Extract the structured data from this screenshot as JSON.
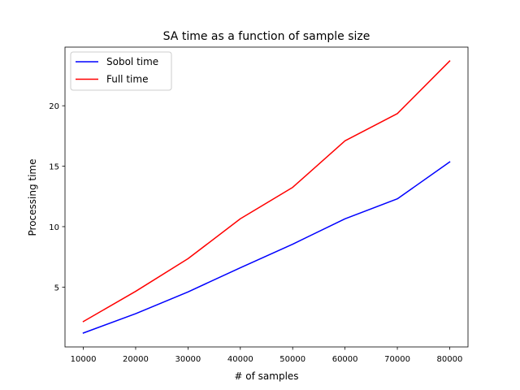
{
  "chart_data": {
    "type": "line",
    "title": "SA time as a function of sample size",
    "xlabel": "# of samples",
    "ylabel": "Processing time",
    "x": [
      10000,
      20000,
      30000,
      40000,
      50000,
      60000,
      70000,
      80000
    ],
    "xticks": [
      "10000",
      "20000",
      "30000",
      "40000",
      "50000",
      "60000",
      "70000",
      "80000"
    ],
    "yticks": [
      "5",
      "10",
      "15",
      "20"
    ],
    "ytick_values": [
      5,
      10,
      15,
      20
    ],
    "xlim": [
      6500,
      83500
    ],
    "ylim": [
      0.05,
      24.85
    ],
    "grid": false,
    "legend_position": "top-left",
    "series": [
      {
        "name": "Sobol time",
        "color": "#0000ff",
        "values": [
          1.2,
          2.8,
          4.6,
          6.6,
          8.55,
          10.65,
          12.3,
          15.35
        ]
      },
      {
        "name": "Full time",
        "color": "#ff0000",
        "values": [
          2.15,
          4.65,
          7.35,
          10.65,
          13.25,
          17.1,
          19.35,
          23.7
        ]
      }
    ]
  }
}
